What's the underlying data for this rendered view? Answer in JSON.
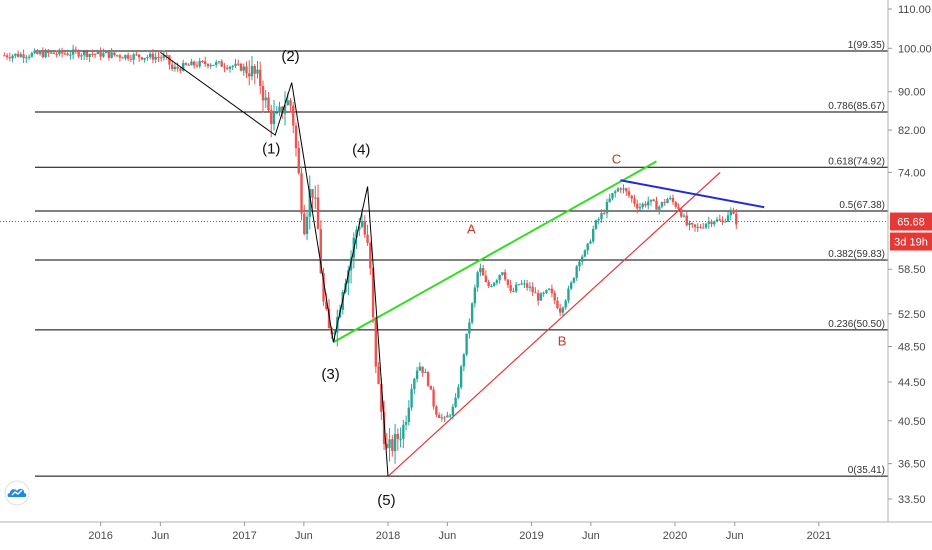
{
  "colors": {
    "up": "#26a69a",
    "down": "#ef5350",
    "fib_line": "#000000",
    "wave_line": "#000000",
    "green_line": "#33dd22",
    "red_line": "#e53935",
    "blue_line": "#1f2bd6",
    "price_line": "#e53935",
    "badge_bg": "#e53935",
    "axis_text": "#4a4a4a",
    "label_red": "#c0392b"
  },
  "logo": {
    "icon": "tradingview-cloud-icon"
  },
  "chart_data": {
    "type": "candlestick",
    "title": "",
    "x_axis_ticks": [
      {
        "label": "2016",
        "date": "2016-01-01"
      },
      {
        "label": "Jun",
        "date": "2016-06-01"
      },
      {
        "label": "2017",
        "date": "2017-01-01"
      },
      {
        "label": "Jun",
        "date": "2017-06-01"
      },
      {
        "label": "2018",
        "date": "2018-01-01"
      },
      {
        "label": "Jun",
        "date": "2018-06-01"
      },
      {
        "label": "2019",
        "date": "2019-01-01"
      },
      {
        "label": "Jun",
        "date": "2019-06-01"
      },
      {
        "label": "2020",
        "date": "2020-01-01"
      },
      {
        "label": "Jun",
        "date": "2020-06-01"
      },
      {
        "label": "2021",
        "date": "2021-01-01"
      }
    ],
    "y_axis_ticks": [
      "110.00",
      "100.00",
      "90.00",
      "82.00",
      "74.00",
      "65.68",
      "58.50",
      "52.50",
      "48.50",
      "44.50",
      "40.50",
      "36.50",
      "33.50"
    ],
    "ylim": [
      33.5,
      110.0
    ],
    "scale": "log",
    "current_price": {
      "value": 65.68,
      "label": "65.68",
      "countdown": "3d 19h"
    },
    "fib_levels": [
      {
        "ratio": "1",
        "value": 99.35,
        "label": "1(99.35)"
      },
      {
        "ratio": "0.786",
        "value": 85.67,
        "label": "0.786(85.67)"
      },
      {
        "ratio": "0.618",
        "value": 74.92,
        "label": "0.618(74.92)"
      },
      {
        "ratio": "0.5",
        "value": 67.38,
        "label": "0.5(67.38)"
      },
      {
        "ratio": "0.382",
        "value": 59.83,
        "label": "0.382(59.83)"
      },
      {
        "ratio": "0.236",
        "value": 50.5,
        "label": "0.236(50.50)"
      },
      {
        "ratio": "0",
        "value": 35.41,
        "label": "0(35.41)"
      }
    ],
    "wave_labels": [
      {
        "label": "(1)",
        "date": "2017-03-10",
        "value": 77.5
      },
      {
        "label": "(2)",
        "date": "2017-04-28",
        "value": 97.0
      },
      {
        "label": "(3)",
        "date": "2017-08-08",
        "value": 44.8
      },
      {
        "label": "(4)",
        "date": "2017-10-25",
        "value": 77.3
      },
      {
        "label": "(5)",
        "date": "2017-12-28",
        "value": 33.0
      }
    ],
    "abc_labels": [
      {
        "label": "A",
        "date": "2018-08-01",
        "value": 63.8
      },
      {
        "label": "B",
        "date": "2019-03-20",
        "value": 48.6
      },
      {
        "label": "C",
        "date": "2019-08-05",
        "value": 75.6
      }
    ],
    "wave_path": [
      {
        "date": "2016-06-01",
        "value": 99.0
      },
      {
        "date": "2017-03-20",
        "value": 81.0
      },
      {
        "date": "2017-05-01",
        "value": 92.0
      },
      {
        "date": "2017-08-15",
        "value": 49.0
      },
      {
        "date": "2017-11-10",
        "value": 71.5
      },
      {
        "date": "2018-01-01",
        "value": 35.4
      }
    ],
    "trendlines": [
      {
        "name": "green",
        "from": {
          "date": "2017-08-15",
          "value": 49.0
        },
        "to": {
          "date": "2019-11-15",
          "value": 76.0
        }
      },
      {
        "name": "red",
        "from": {
          "date": "2018-01-01",
          "value": 35.4
        },
        "to": {
          "date": "2020-04-25",
          "value": 74.0
        }
      },
      {
        "name": "blue",
        "from": {
          "date": "2019-08-15",
          "value": 72.6
        },
        "to": {
          "date": "2020-08-15",
          "value": 68.0
        }
      }
    ],
    "series": [
      {
        "name": "price",
        "points": [
          [
            "2015-05-01",
            98.3
          ],
          [
            "2015-08-01",
            98.6
          ],
          [
            "2015-11-01",
            98.9
          ],
          [
            "2016-01-01",
            98.6
          ],
          [
            "2016-03-01",
            98.2
          ],
          [
            "2016-05-01",
            98.0
          ],
          [
            "2016-06-15",
            97.8
          ],
          [
            "2016-07-01",
            95.0
          ],
          [
            "2016-08-15",
            96.0
          ],
          [
            "2016-10-01",
            96.5
          ],
          [
            "2016-12-01",
            95.8
          ],
          [
            "2017-01-15",
            95.0
          ],
          [
            "2017-02-10",
            92.0
          ],
          [
            "2017-03-05",
            85.0
          ],
          [
            "2017-03-25",
            84.0
          ],
          [
            "2017-04-15",
            88.0
          ],
          [
            "2017-05-01",
            87.0
          ],
          [
            "2017-05-15",
            76.0
          ],
          [
            "2017-06-01",
            65.0
          ],
          [
            "2017-06-20",
            72.0
          ],
          [
            "2017-07-05",
            66.0
          ],
          [
            "2017-07-20",
            54.0
          ],
          [
            "2017-08-05",
            50.0
          ],
          [
            "2017-08-25",
            52.0
          ],
          [
            "2017-09-10",
            57.0
          ],
          [
            "2017-09-25",
            59.0
          ],
          [
            "2017-10-10",
            64.0
          ],
          [
            "2017-10-25",
            66.5
          ],
          [
            "2017-11-15",
            60.0
          ],
          [
            "2017-11-28",
            48.0
          ],
          [
            "2017-12-10",
            43.0
          ],
          [
            "2017-12-28",
            37.5
          ],
          [
            "2018-01-20",
            38.5
          ],
          [
            "2018-02-10",
            40.0
          ],
          [
            "2018-03-01",
            44.0
          ],
          [
            "2018-03-20",
            46.5
          ],
          [
            "2018-04-10",
            45.0
          ],
          [
            "2018-05-01",
            41.5
          ],
          [
            "2018-05-25",
            40.5
          ],
          [
            "2018-06-20",
            42.0
          ],
          [
            "2018-07-10",
            47.0
          ],
          [
            "2018-08-01",
            53.0
          ],
          [
            "2018-08-20",
            59.0
          ],
          [
            "2018-09-10",
            56.0
          ],
          [
            "2018-10-01",
            57.0
          ],
          [
            "2018-10-20",
            58.5
          ],
          [
            "2018-11-10",
            55.0
          ],
          [
            "2018-12-01",
            56.5
          ],
          [
            "2018-12-25",
            56.0
          ],
          [
            "2019-01-20",
            54.5
          ],
          [
            "2019-02-15",
            55.5
          ],
          [
            "2019-03-15",
            53.0
          ],
          [
            "2019-04-10",
            56.0
          ],
          [
            "2019-05-01",
            60.0
          ],
          [
            "2019-05-20",
            61.0
          ],
          [
            "2019-06-10",
            65.0
          ],
          [
            "2019-07-01",
            67.0
          ],
          [
            "2019-07-25",
            70.0
          ],
          [
            "2019-08-15",
            71.5
          ],
          [
            "2019-09-05",
            70.0
          ],
          [
            "2019-10-01",
            68.0
          ],
          [
            "2019-10-25",
            69.0
          ],
          [
            "2019-11-20",
            68.0
          ],
          [
            "2019-12-15",
            69.5
          ],
          [
            "2020-01-10",
            68.0
          ],
          [
            "2020-02-01",
            65.0
          ],
          [
            "2020-02-25",
            64.5
          ],
          [
            "2020-03-20",
            65.5
          ],
          [
            "2020-04-10",
            66.0
          ],
          [
            "2020-05-01",
            65.5
          ],
          [
            "2020-05-20",
            67.5
          ],
          [
            "2020-06-05",
            65.68
          ]
        ]
      }
    ]
  }
}
